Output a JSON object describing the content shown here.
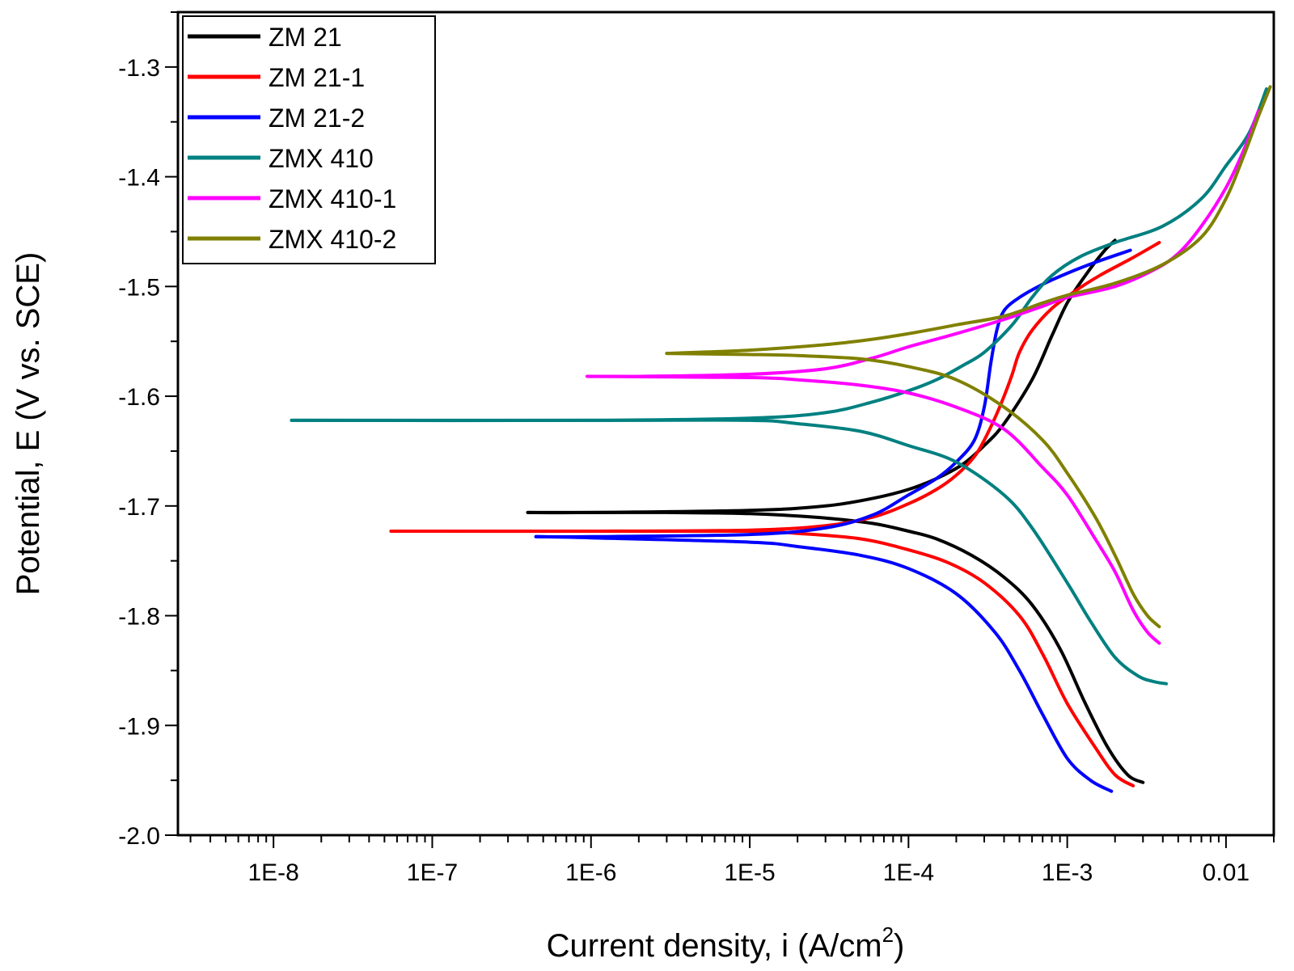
{
  "chart_data": {
    "type": "line",
    "xlabel": "Current density, i (A/cm",
    "xlabel_sup": "2",
    "xlabel_end": ")",
    "ylabel": "Potential, E (V vs. SCE)",
    "xscale": "log",
    "xlim": [
      2.5e-09,
      0.02
    ],
    "ylim": [
      -2.0,
      -1.25
    ],
    "x_ticks": [
      {
        "value": 1e-08,
        "label": "1E-8"
      },
      {
        "value": 1e-07,
        "label": "1E-7"
      },
      {
        "value": 1e-06,
        "label": "1E-6"
      },
      {
        "value": 1e-05,
        "label": "1E-5"
      },
      {
        "value": 0.0001,
        "label": "1E-4"
      },
      {
        "value": 0.001,
        "label": "1E-3"
      },
      {
        "value": 0.01,
        "label": "0.01"
      }
    ],
    "y_ticks": [
      {
        "value": -1.3,
        "label": "-1.3"
      },
      {
        "value": -1.4,
        "label": "-1.4"
      },
      {
        "value": -1.5,
        "label": "-1.5"
      },
      {
        "value": -1.6,
        "label": "-1.6"
      },
      {
        "value": -1.7,
        "label": "-1.7"
      },
      {
        "value": -1.8,
        "label": "-1.8"
      },
      {
        "value": -1.9,
        "label": "-1.9"
      },
      {
        "value": -2.0,
        "label": "-2.0"
      }
    ],
    "legend_position": "top-left",
    "series": [
      {
        "name": "ZM 21",
        "color": "#000000",
        "cathodic": [
          [
            0.003,
            -1.952
          ],
          [
            0.0024,
            -1.945
          ],
          [
            0.0018,
            -1.92
          ],
          [
            0.0013,
            -1.88
          ],
          [
            0.0009,
            -1.83
          ],
          [
            0.0006,
            -1.79
          ],
          [
            0.0004,
            -1.765
          ],
          [
            0.00025,
            -1.745
          ],
          [
            0.00015,
            -1.73
          ],
          [
            0.0001,
            -1.723
          ],
          [
            6e-05,
            -1.716
          ],
          [
            3e-05,
            -1.711
          ],
          [
            1e-05,
            -1.707
          ],
          [
            3e-06,
            -1.706
          ],
          [
            1e-06,
            -1.706
          ],
          [
            4e-07,
            -1.706
          ]
        ],
        "anodic": [
          [
            4e-07,
            -1.706
          ],
          [
            1e-06,
            -1.706
          ],
          [
            1e-05,
            -1.704
          ],
          [
            3e-05,
            -1.7
          ],
          [
            6e-05,
            -1.693
          ],
          [
            0.0001,
            -1.685
          ],
          [
            0.00015,
            -1.675
          ],
          [
            0.00022,
            -1.662
          ],
          [
            0.0003,
            -1.645
          ],
          [
            0.0004,
            -1.625
          ],
          [
            0.0006,
            -1.585
          ],
          [
            0.0008,
            -1.545
          ],
          [
            0.001,
            -1.515
          ],
          [
            0.0013,
            -1.49
          ],
          [
            0.0017,
            -1.468
          ],
          [
            0.002,
            -1.458
          ]
        ]
      },
      {
        "name": "ZM 21-1",
        "color": "#ff0000",
        "cathodic": [
          [
            0.0026,
            -1.955
          ],
          [
            0.002,
            -1.945
          ],
          [
            0.0015,
            -1.92
          ],
          [
            0.001,
            -1.88
          ],
          [
            0.0007,
            -1.835
          ],
          [
            0.0005,
            -1.8
          ],
          [
            0.0003,
            -1.77
          ],
          [
            0.00018,
            -1.752
          ],
          [
            0.0001,
            -1.74
          ],
          [
            5e-05,
            -1.73
          ],
          [
            2e-05,
            -1.725
          ],
          [
            1e-05,
            -1.723
          ],
          [
            1e-06,
            -1.723
          ],
          [
            5.5e-08,
            -1.723
          ]
        ],
        "anodic": [
          [
            5.5e-08,
            -1.723
          ],
          [
            1e-06,
            -1.723
          ],
          [
            1e-05,
            -1.722
          ],
          [
            3e-05,
            -1.718
          ],
          [
            6e-05,
            -1.71
          ],
          [
            0.0001,
            -1.698
          ],
          [
            0.00015,
            -1.685
          ],
          [
            0.0002,
            -1.672
          ],
          [
            0.00026,
            -1.655
          ],
          [
            0.0003,
            -1.64
          ],
          [
            0.00035,
            -1.62
          ],
          [
            0.0004,
            -1.6
          ],
          [
            0.00045,
            -1.58
          ],
          [
            0.0005,
            -1.56
          ],
          [
            0.0006,
            -1.54
          ],
          [
            0.0008,
            -1.52
          ],
          [
            0.0011,
            -1.505
          ],
          [
            0.0016,
            -1.49
          ],
          [
            0.0025,
            -1.475
          ],
          [
            0.0038,
            -1.46
          ]
        ]
      },
      {
        "name": "ZM 21-2",
        "color": "#0000ff",
        "cathodic": [
          [
            0.0019,
            -1.96
          ],
          [
            0.0014,
            -1.95
          ],
          [
            0.001,
            -1.93
          ],
          [
            0.0007,
            -1.89
          ],
          [
            0.0005,
            -1.85
          ],
          [
            0.00035,
            -1.815
          ],
          [
            0.0002,
            -1.78
          ],
          [
            0.0001,
            -1.757
          ],
          [
            5e-05,
            -1.745
          ],
          [
            2e-05,
            -1.737
          ],
          [
            1e-05,
            -1.733
          ],
          [
            1e-06,
            -1.729
          ],
          [
            4.5e-07,
            -1.728
          ]
        ],
        "anodic": [
          [
            4.5e-07,
            -1.728
          ],
          [
            1e-06,
            -1.728
          ],
          [
            1e-05,
            -1.726
          ],
          [
            3e-05,
            -1.72
          ],
          [
            6e-05,
            -1.708
          ],
          [
            0.0001,
            -1.69
          ],
          [
            0.00015,
            -1.675
          ],
          [
            0.0002,
            -1.66
          ],
          [
            0.00026,
            -1.64
          ],
          [
            0.0003,
            -1.61
          ],
          [
            0.00033,
            -1.57
          ],
          [
            0.00036,
            -1.54
          ],
          [
            0.0004,
            -1.522
          ],
          [
            0.0005,
            -1.51
          ],
          [
            0.0007,
            -1.498
          ],
          [
            0.001,
            -1.488
          ],
          [
            0.0015,
            -1.478
          ],
          [
            0.0025,
            -1.467
          ]
        ]
      },
      {
        "name": "ZMX 410",
        "color": "#008080",
        "cathodic": [
          [
            0.0042,
            -1.862
          ],
          [
            0.0035,
            -1.86
          ],
          [
            0.0028,
            -1.855
          ],
          [
            0.002,
            -1.838
          ],
          [
            0.0014,
            -1.805
          ],
          [
            0.001,
            -1.77
          ],
          [
            0.0006,
            -1.72
          ],
          [
            0.0004,
            -1.69
          ],
          [
            0.0002,
            -1.66
          ],
          [
            0.0001,
            -1.645
          ],
          [
            5e-05,
            -1.632
          ],
          [
            2e-05,
            -1.625
          ],
          [
            1e-05,
            -1.622
          ],
          [
            1e-06,
            -1.622
          ],
          [
            1.3e-08,
            -1.622
          ]
        ],
        "anodic": [
          [
            1.3e-08,
            -1.622
          ],
          [
            1e-06,
            -1.622
          ],
          [
            1e-05,
            -1.62
          ],
          [
            3e-05,
            -1.615
          ],
          [
            6e-05,
            -1.605
          ],
          [
            0.0001,
            -1.595
          ],
          [
            0.00015,
            -1.585
          ],
          [
            0.00022,
            -1.572
          ],
          [
            0.0003,
            -1.56
          ],
          [
            0.00045,
            -1.535
          ],
          [
            0.0006,
            -1.51
          ],
          [
            0.0008,
            -1.49
          ],
          [
            0.0012,
            -1.473
          ],
          [
            0.002,
            -1.46
          ],
          [
            0.004,
            -1.445
          ],
          [
            0.007,
            -1.42
          ],
          [
            0.01,
            -1.39
          ],
          [
            0.014,
            -1.36
          ],
          [
            0.018,
            -1.32
          ]
        ]
      },
      {
        "name": "ZMX 410-1",
        "color": "#ff00ff",
        "cathodic": [
          [
            0.0038,
            -1.825
          ],
          [
            0.0032,
            -1.815
          ],
          [
            0.0026,
            -1.795
          ],
          [
            0.002,
            -1.76
          ],
          [
            0.0015,
            -1.73
          ],
          [
            0.001,
            -1.69
          ],
          [
            0.0007,
            -1.665
          ],
          [
            0.0004,
            -1.63
          ],
          [
            0.0002,
            -1.61
          ],
          [
            0.0001,
            -1.597
          ],
          [
            5e-05,
            -1.59
          ],
          [
            2e-05,
            -1.585
          ],
          [
            1e-05,
            -1.583
          ],
          [
            1e-06,
            -1.582
          ],
          [
            1.9e-06,
            -1.582
          ]
        ],
        "anodic": [
          [
            1.9e-06,
            -1.582
          ],
          [
            1e-05,
            -1.58
          ],
          [
            3e-05,
            -1.575
          ],
          [
            6e-05,
            -1.565
          ],
          [
            0.0001,
            -1.555
          ],
          [
            0.0002,
            -1.543
          ],
          [
            0.0004,
            -1.53
          ],
          [
            0.0007,
            -1.518
          ],
          [
            0.001,
            -1.51
          ],
          [
            0.002,
            -1.5
          ],
          [
            0.0035,
            -1.485
          ],
          [
            0.005,
            -1.47
          ],
          [
            0.007,
            -1.445
          ],
          [
            0.01,
            -1.41
          ],
          [
            0.013,
            -1.375
          ],
          [
            0.016,
            -1.34
          ]
        ]
      },
      {
        "name": "ZMX 410-2",
        "color": "#808000",
        "cathodic": [
          [
            0.0038,
            -1.81
          ],
          [
            0.0032,
            -1.8
          ],
          [
            0.0026,
            -1.78
          ],
          [
            0.002,
            -1.745
          ],
          [
            0.0015,
            -1.71
          ],
          [
            0.001,
            -1.67
          ],
          [
            0.0007,
            -1.64
          ],
          [
            0.0004,
            -1.61
          ],
          [
            0.0002,
            -1.585
          ],
          [
            0.0001,
            -1.573
          ],
          [
            5e-05,
            -1.566
          ],
          [
            2e-05,
            -1.563
          ],
          [
            1e-05,
            -1.562
          ],
          [
            3e-06,
            -1.561
          ]
        ],
        "anodic": [
          [
            3e-06,
            -1.561
          ],
          [
            1e-05,
            -1.558
          ],
          [
            3e-05,
            -1.553
          ],
          [
            6e-05,
            -1.548
          ],
          [
            0.0001,
            -1.543
          ],
          [
            0.0002,
            -1.535
          ],
          [
            0.0004,
            -1.527
          ],
          [
            0.0007,
            -1.515
          ],
          [
            0.001,
            -1.508
          ],
          [
            0.002,
            -1.497
          ],
          [
            0.004,
            -1.48
          ],
          [
            0.007,
            -1.455
          ],
          [
            0.01,
            -1.42
          ],
          [
            0.013,
            -1.38
          ],
          [
            0.016,
            -1.345
          ],
          [
            0.019,
            -1.318
          ]
        ]
      }
    ]
  }
}
